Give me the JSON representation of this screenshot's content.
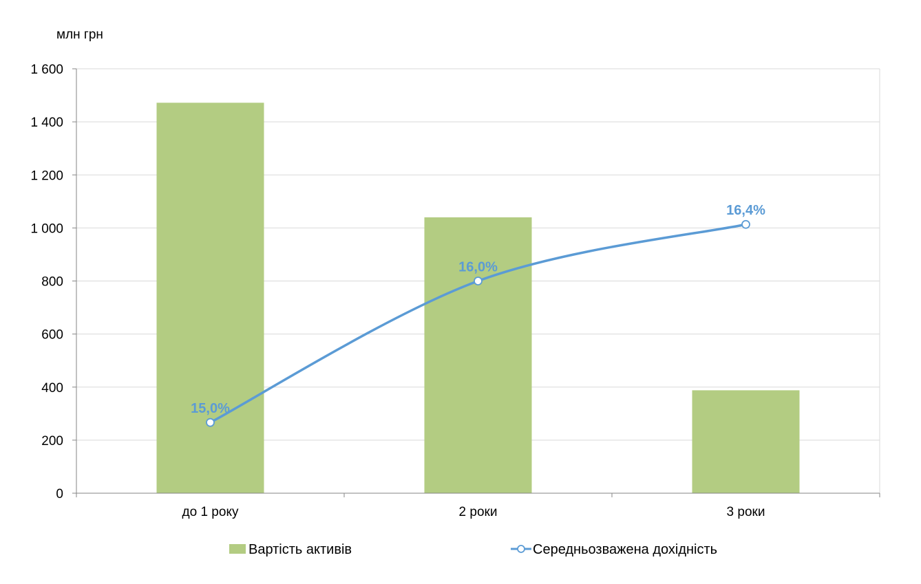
{
  "chart_data": {
    "type": "bar",
    "ylabel": "млн грн",
    "categories": [
      "до 1 року",
      "2 роки",
      "3 роки"
    ],
    "ylim": [
      0,
      1600
    ],
    "yticks": [
      0,
      200,
      400,
      600,
      800,
      1000,
      1200,
      1400,
      1600
    ],
    "ytick_labels": [
      "0",
      "200",
      "400",
      "600",
      "800",
      "1 000",
      "1 200",
      "1 400",
      "1 600"
    ],
    "grid": true,
    "legend_position": "bottom",
    "series": [
      {
        "name": "Вартість активів",
        "type": "bar",
        "axis": "primary",
        "values": [
          1472,
          1040,
          388
        ],
        "color": "#b3cc82"
      },
      {
        "name": "Середньозважена дохідність",
        "type": "line",
        "axis": "secondary",
        "smooth": true,
        "marker": "circle",
        "values": [
          15.0,
          16.0,
          16.4
        ],
        "data_labels": [
          "15,0%",
          "16,0%",
          "16,4%"
        ],
        "color": "#5b9bd5"
      }
    ]
  }
}
